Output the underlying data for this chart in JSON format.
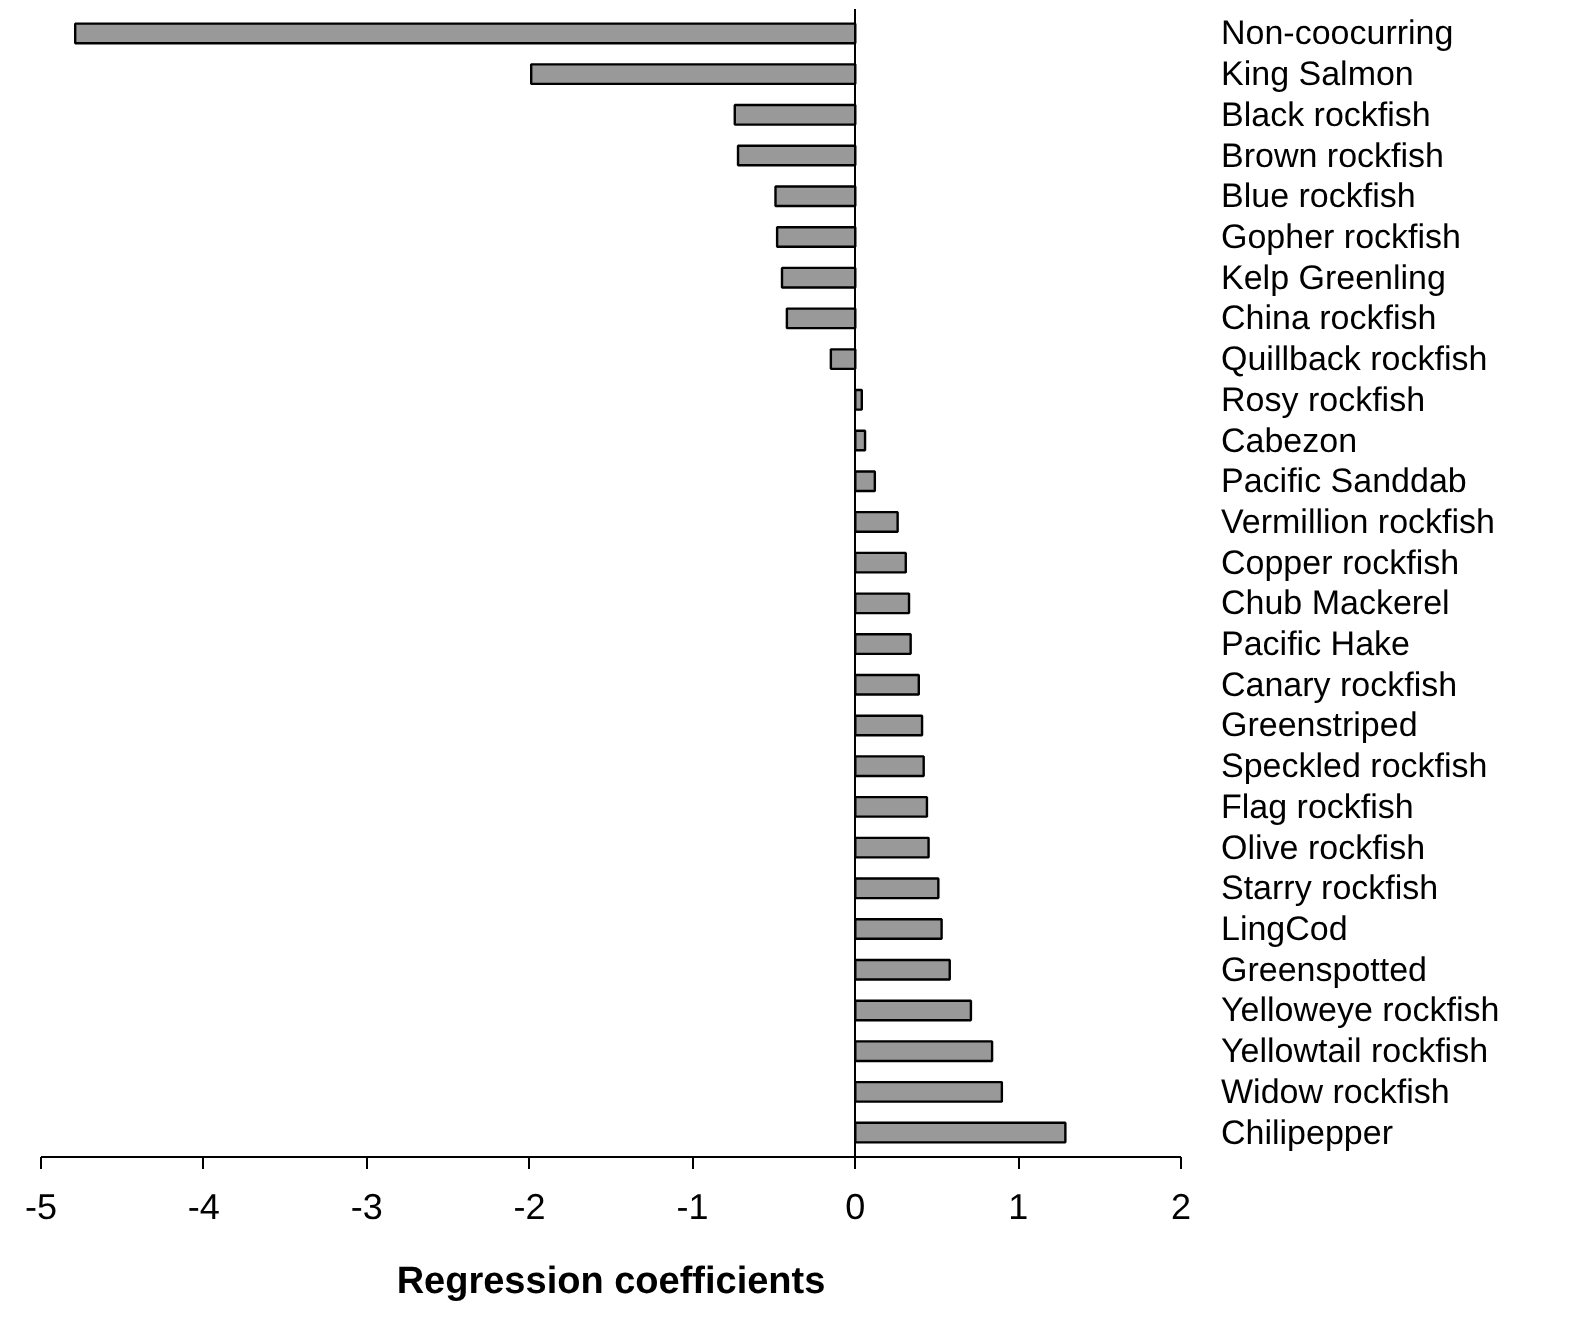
{
  "chart_data": {
    "type": "bar",
    "orientation": "horizontal",
    "xlabel": "Regression coefficients",
    "categories": [
      "Non-coocurring",
      "King Salmon",
      "Black rockfish",
      "Brown rockfish",
      "Blue rockfish",
      "Gopher rockfish",
      "Kelp Greenling",
      "China rockfish",
      "Quillback rockfish",
      "Rosy rockfish",
      "Cabezon",
      "Pacific Sanddab",
      "Vermillion rockfish",
      "Copper rockfish",
      "Chub Mackerel",
      "Pacific Hake",
      "Canary rockfish",
      "Greenstriped",
      "Speckled rockfish",
      "Flag rockfish",
      "Olive rockfish",
      "Starry rockfish",
      "LingCod",
      "Greenspotted",
      "Yelloweye rockfish",
      "Yellowtail rockfish",
      "Widow rockfish",
      "Chilipepper"
    ],
    "values": [
      -4.79,
      -1.99,
      -0.74,
      -0.72,
      -0.49,
      -0.48,
      -0.45,
      -0.42,
      -0.15,
      0.04,
      0.06,
      0.12,
      0.26,
      0.31,
      0.33,
      0.34,
      0.39,
      0.41,
      0.42,
      0.44,
      0.45,
      0.51,
      0.53,
      0.58,
      0.71,
      0.84,
      0.9,
      1.29
    ],
    "color": "#999999",
    "xlim": [
      -5,
      2
    ],
    "xticks": [
      -5,
      -4,
      -3,
      -2,
      -1,
      0,
      1,
      2
    ]
  }
}
